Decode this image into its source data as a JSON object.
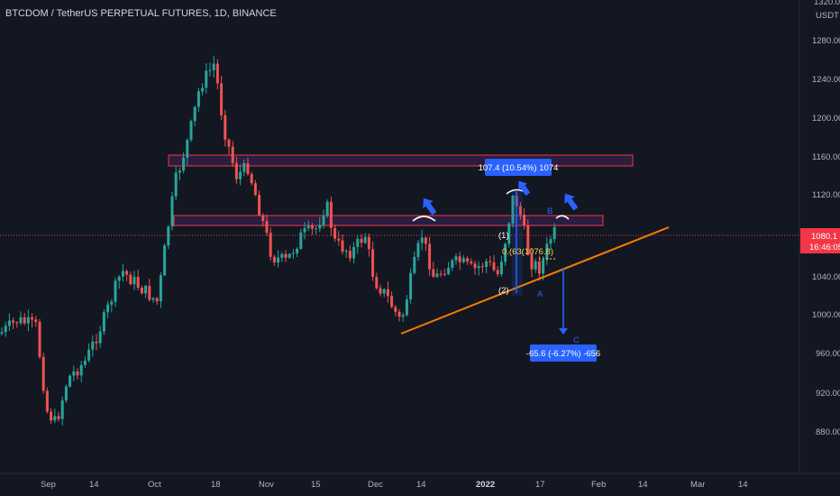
{
  "header": {
    "title": "BTCDOM / TetherUS PERPETUAL FUTURES, 1D, BINANCE"
  },
  "price_axis": {
    "currency": "USDT",
    "ticks": [
      "1320.00",
      "1280.00",
      "1240.00",
      "1200.00",
      "1160.00",
      "1120.00",
      "1080.00",
      "1040.00",
      "1000.00",
      "960.00",
      "920.00",
      "880.00"
    ],
    "current_price": "1080.1",
    "countdown": "16:46:05"
  },
  "time_axis": {
    "ticks": [
      "Sep",
      "14",
      "Oct",
      "18",
      "Nov",
      "15",
      "Dec",
      "14",
      "2022",
      "17",
      "Feb",
      "14",
      "Mar",
      "14"
    ]
  },
  "annotations": {
    "up_measure": "107.4 (10.54%) 1074",
    "down_measure": "-65.6 (-6.27%) -656",
    "label_b": "B",
    "label_a": "A",
    "label_c": "C",
    "label_1": "(1)",
    "label_2": "(2)",
    "fib_text": "0.(63(1076.8)"
  },
  "colors": {
    "background": "#131722",
    "up_candle": "#26a69a",
    "down_candle": "#ef5350",
    "zone_fill": "#2d1e44",
    "zone_border": "#f23645",
    "trendline": "#f57c00",
    "measure_box": "#2962ff",
    "price_tag": "#f23645"
  }
}
